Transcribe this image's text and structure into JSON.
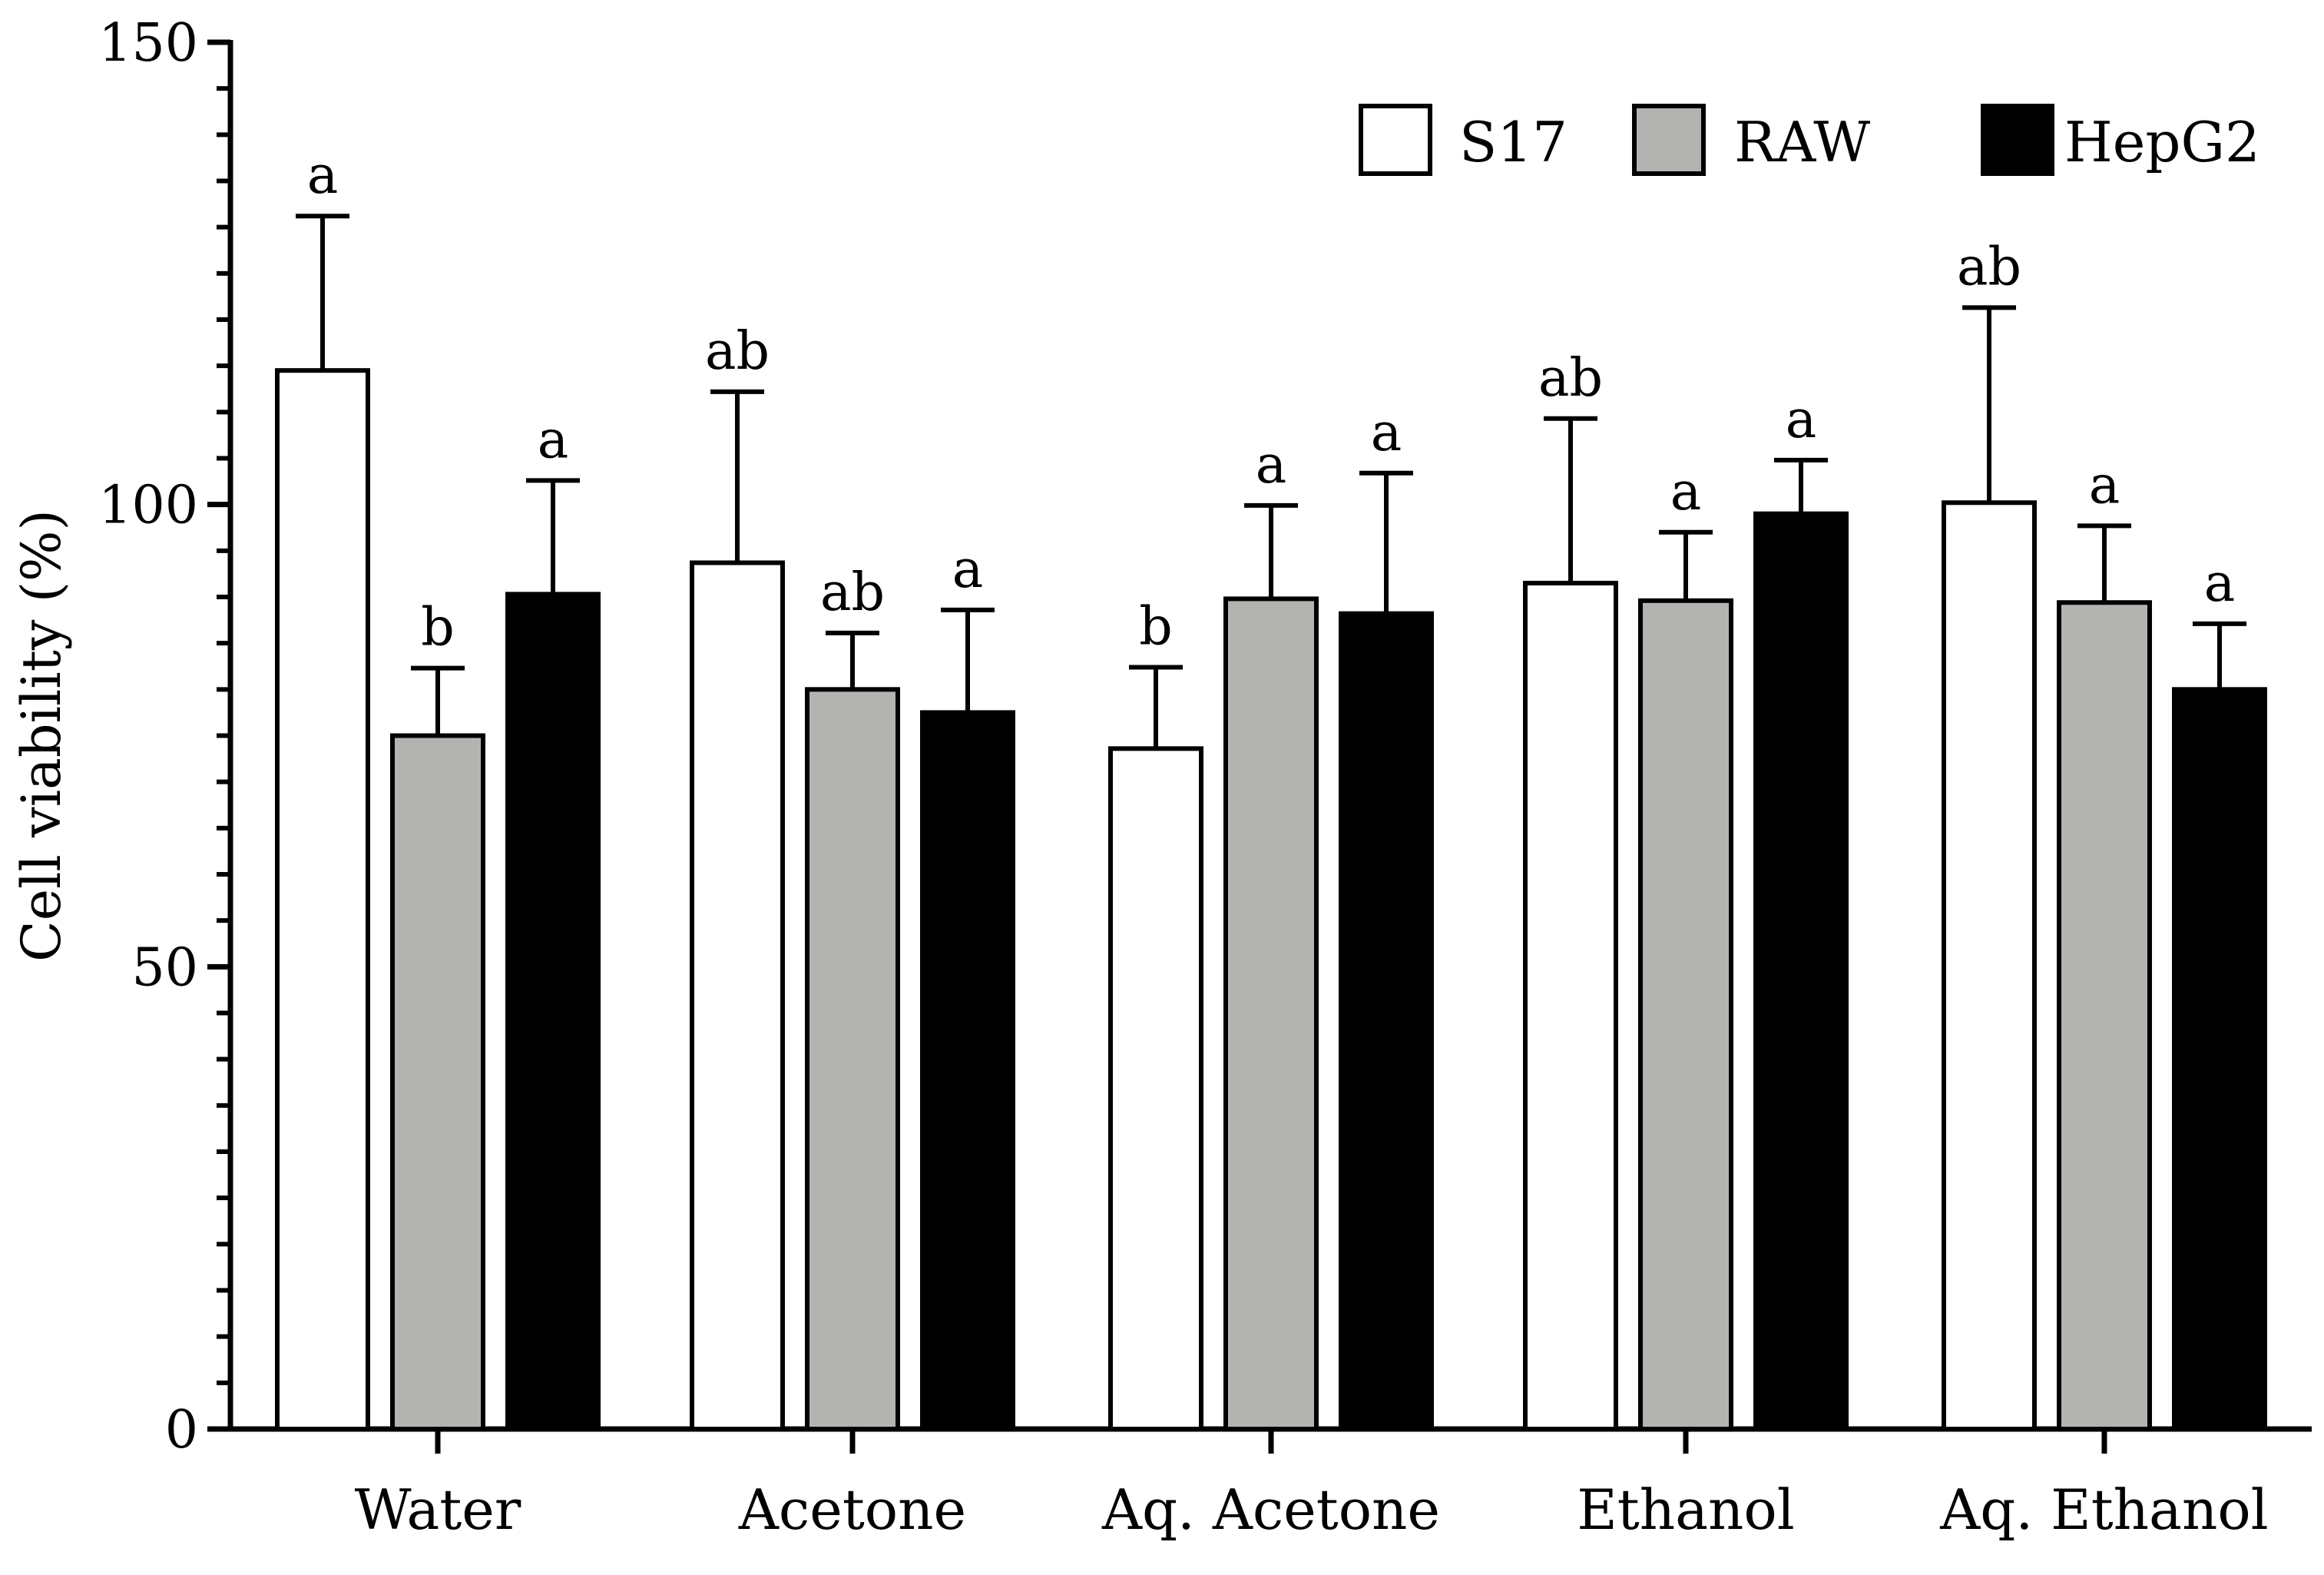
{
  "chart_data": {
    "type": "bar",
    "title": "",
    "xlabel": "",
    "ylabel": "Cell viability (%)",
    "ylim": [
      0,
      150
    ],
    "yticks": [
      0,
      50,
      100,
      150
    ],
    "minor_tick_step": 5,
    "grid": false,
    "legend_position": "top-right",
    "categories": [
      "Water",
      "Acetone",
      "Aq. Acetone",
      "Ethanol",
      "Aq. Ethanol"
    ],
    "series": [
      {
        "name": "S17",
        "color": "#ffffff",
        "values": [
          114.5,
          93.7,
          73.6,
          91.5,
          100.2
        ],
        "errors": [
          16.7,
          18.5,
          8.8,
          17.8,
          21.1
        ],
        "letters": [
          "a",
          "ab",
          "b",
          "ab",
          "ab"
        ]
      },
      {
        "name": "RAW",
        "color": "#b3b3b1",
        "values": [
          75.0,
          80.0,
          89.8,
          89.6,
          89.4
        ],
        "errors": [
          7.3,
          6.1,
          10.1,
          7.4,
          8.3
        ],
        "letters": [
          "b",
          "ab",
          "a",
          "a",
          "a"
        ]
      },
      {
        "name": "HepG2",
        "color": "#000000",
        "values": [
          90.3,
          77.5,
          88.2,
          99.0,
          80.0
        ],
        "errors": [
          12.3,
          11.1,
          15.2,
          5.8,
          7.1
        ],
        "letters": [
          "a",
          "a",
          "a",
          "a",
          "a"
        ]
      }
    ]
  }
}
